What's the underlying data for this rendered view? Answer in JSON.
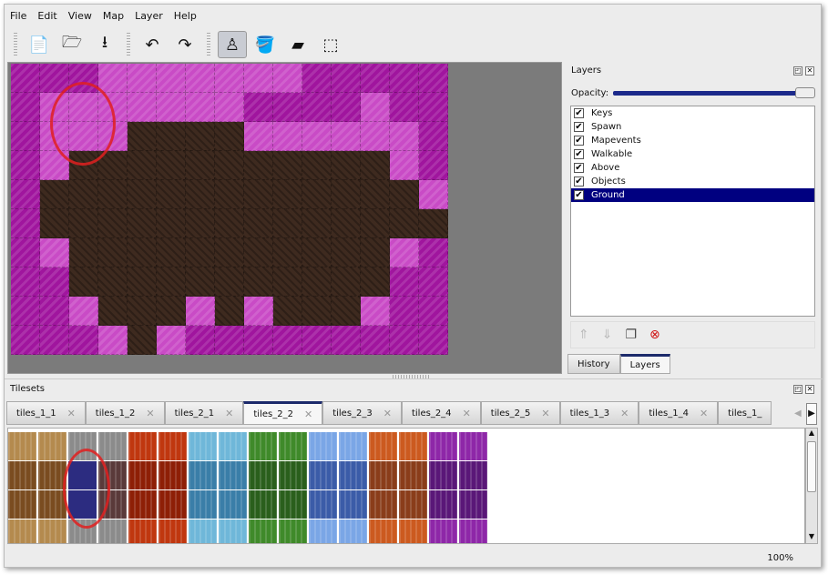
{
  "menu": [
    "File",
    "Edit",
    "View",
    "Map",
    "Layer",
    "Help"
  ],
  "toolbar": [
    {
      "name": "new-icon",
      "glyph": "📄"
    },
    {
      "name": "open-icon",
      "glyph": "🗁"
    },
    {
      "name": "save-icon",
      "glyph": "⭳"
    },
    {
      "name": "undo-icon",
      "glyph": "↶"
    },
    {
      "name": "redo-icon",
      "glyph": "↷"
    },
    {
      "name": "stamp-brush-icon",
      "glyph": "♙",
      "active": true
    },
    {
      "name": "bucket-fill-icon",
      "glyph": "🪣"
    },
    {
      "name": "eraser-icon",
      "glyph": "▰"
    },
    {
      "name": "rect-select-icon",
      "glyph": "⬚"
    }
  ],
  "map": {
    "rows": [
      "mmmpppppppmmmmm",
      "mpppppppmmmmpmm",
      "mpppddddppppppm",
      "mpdddddddddddpm",
      "mdddddddddddddpm",
      "mddddddddddddddm",
      "mpdddddddddddpm",
      "mmdddddddddddmm",
      "mmpdddpdpdddpmm",
      "mmmpdpmmmmmmmmm"
    ],
    "colors": {
      "m": "#a0159e",
      "p": "#c94bc6",
      "d": "#3e2a1f"
    }
  },
  "layers_panel": {
    "title": "Layers",
    "opacity_label": "Opacity:",
    "opacity": 1.0,
    "items": [
      {
        "name": "Keys",
        "visible": true
      },
      {
        "name": "Spawn",
        "visible": true
      },
      {
        "name": "Mapevents",
        "visible": true
      },
      {
        "name": "Walkable",
        "visible": true
      },
      {
        "name": "Above",
        "visible": true
      },
      {
        "name": "Objects",
        "visible": true
      },
      {
        "name": "Ground",
        "visible": true,
        "selected": true
      }
    ],
    "tabs": [
      {
        "label": "History"
      },
      {
        "label": "Layers",
        "active": true
      }
    ]
  },
  "tilesets_panel": {
    "title": "Tilesets",
    "tabs": [
      "tiles_1_1",
      "tiles_1_2",
      "tiles_2_1",
      "tiles_2_2",
      "tiles_2_3",
      "tiles_2_4",
      "tiles_2_5",
      "tiles_1_3",
      "tiles_1_4",
      "tiles_1_"
    ],
    "active_tab": 3,
    "swatches": [
      "#b48a4e",
      "#8b8b8b",
      "#c0370f",
      "#6fb7d9",
      "#3f8a2a",
      "#7aa6e6",
      "#cc5a1f",
      "#8e27a8"
    ],
    "swatches_dark": [
      "#7a4c20",
      "#5a3a3a",
      "#8e1f06",
      "#3a7ea8",
      "#2a5f1c",
      "#3b5ca8",
      "#8a3d1a",
      "#5a1778"
    ]
  },
  "status": {
    "zoom": "100%"
  }
}
